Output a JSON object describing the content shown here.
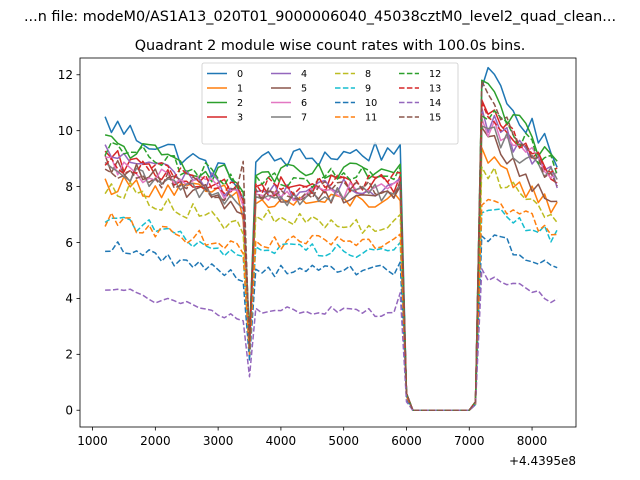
{
  "chart_data": {
    "type": "line",
    "suptitle": "...n file: modeM0/AS1A13_020T01_9000006040_45038cztM0_level2_quad_clean...",
    "title": "Quadrant 2 module wise count rates with 100.0s bins.",
    "xlabel": "",
    "ylabel": "",
    "x_offset_label": "+4.4395e8",
    "xlim": [
      800,
      8700
    ],
    "ylim": [
      -0.6,
      12.6
    ],
    "xticks": [
      1000,
      2000,
      3000,
      4000,
      5000,
      6000,
      7000,
      8000
    ],
    "xtick_labels": [
      "1000",
      "2000",
      "3000",
      "4000",
      "5000",
      "6000",
      "7000",
      "8000"
    ],
    "yticks": [
      0,
      2,
      4,
      6,
      8,
      10,
      12
    ],
    "ytick_labels": [
      "0",
      "2",
      "4",
      "6",
      "8",
      "10",
      "12"
    ],
    "grid": false,
    "legend": {
      "placement": "top-center",
      "ncol": 4
    },
    "x_knots": [
      1200,
      3300,
      3400,
      3500,
      3600,
      5800,
      5900,
      6000,
      6100,
      7000,
      7100,
      7200,
      8400
    ],
    "series": [
      {
        "name": "0",
        "color": "#1f77b4",
        "dash": "solid",
        "y_knots": [
          10.3,
          8.3,
          7.5,
          2.5,
          8.9,
          9.3,
          9.5,
          0.6,
          0.0,
          0.0,
          0.3,
          12.0,
          9.0
        ]
      },
      {
        "name": "1",
        "color": "#ff7f0e",
        "dash": "solid",
        "y_knots": [
          8.1,
          7.7,
          6.8,
          2.3,
          7.4,
          7.5,
          7.5,
          0.5,
          0.0,
          0.0,
          0.3,
          9.0,
          7.2
        ]
      },
      {
        "name": "2",
        "color": "#2ca02c",
        "dash": "solid",
        "y_knots": [
          9.6,
          8.3,
          7.8,
          2.6,
          8.4,
          8.5,
          8.8,
          0.6,
          0.0,
          0.0,
          0.3,
          11.4,
          8.8
        ]
      },
      {
        "name": "3",
        "color": "#d62728",
        "dash": "solid",
        "y_knots": [
          9.0,
          7.8,
          7.5,
          2.4,
          8.0,
          8.1,
          8.4,
          0.6,
          0.0,
          0.0,
          0.3,
          10.8,
          8.2
        ]
      },
      {
        "name": "4",
        "color": "#9467bd",
        "dash": "solid",
        "y_knots": [
          9.2,
          7.9,
          7.6,
          2.4,
          7.8,
          8.0,
          8.3,
          0.6,
          0.0,
          0.0,
          0.3,
          10.6,
          8.2
        ]
      },
      {
        "name": "5",
        "color": "#8c564b",
        "dash": "solid",
        "y_knots": [
          8.8,
          7.4,
          7.0,
          2.3,
          7.6,
          7.8,
          8.0,
          0.6,
          0.0,
          0.0,
          0.3,
          10.0,
          7.2
        ]
      },
      {
        "name": "6",
        "color": "#e377c2",
        "dash": "solid",
        "y_knots": [
          8.7,
          7.8,
          7.3,
          2.3,
          7.7,
          7.9,
          8.2,
          0.6,
          0.0,
          0.0,
          0.3,
          10.4,
          8.4
        ]
      },
      {
        "name": "7",
        "color": "#7f7f7f",
        "dash": "solid",
        "y_knots": [
          8.5,
          7.6,
          7.2,
          2.3,
          7.6,
          7.8,
          8.1,
          0.6,
          0.0,
          0.0,
          0.3,
          10.2,
          8.3
        ]
      },
      {
        "name": "8",
        "color": "#bcbd22",
        "dash": "dashed",
        "y_knots": [
          8.1,
          6.6,
          6.3,
          2.1,
          6.9,
          6.5,
          7.0,
          0.5,
          0.0,
          0.0,
          0.3,
          8.8,
          6.9
        ]
      },
      {
        "name": "9",
        "color": "#17becf",
        "dash": "dashed",
        "y_knots": [
          7.0,
          5.6,
          5.5,
          2.0,
          5.8,
          5.7,
          6.0,
          0.5,
          0.0,
          0.0,
          0.2,
          7.2,
          6.2
        ]
      },
      {
        "name": "10",
        "color": "#1f77b4",
        "dash": "dashed",
        "y_knots": [
          5.9,
          4.9,
          4.6,
          1.8,
          5.0,
          5.0,
          5.3,
          0.4,
          0.0,
          0.0,
          0.2,
          6.4,
          5.0
        ]
      },
      {
        "name": "11",
        "color": "#ff7f0e",
        "dash": "dashed",
        "y_knots": [
          6.8,
          5.9,
          5.6,
          2.0,
          6.0,
          6.0,
          6.3,
          0.5,
          0.0,
          0.0,
          0.2,
          7.6,
          6.3
        ]
      },
      {
        "name": "12",
        "color": "#2ca02c",
        "dash": "dashed",
        "y_knots": [
          9.4,
          8.2,
          7.8,
          2.5,
          8.3,
          8.4,
          8.7,
          0.6,
          0.0,
          0.0,
          0.3,
          11.0,
          8.6
        ]
      },
      {
        "name": "13",
        "color": "#d62728",
        "dash": "dashed",
        "y_knots": [
          9.0,
          7.9,
          7.5,
          2.4,
          8.0,
          8.2,
          8.5,
          0.6,
          0.0,
          0.0,
          0.3,
          10.6,
          8.3
        ]
      },
      {
        "name": "14",
        "color": "#9467bd",
        "dash": "dashed",
        "y_knots": [
          4.4,
          3.3,
          3.2,
          1.2,
          3.6,
          3.5,
          4.2,
          0.3,
          0.0,
          0.0,
          0.2,
          4.9,
          3.9
        ]
      },
      {
        "name": "15",
        "color": "#8c564b",
        "dash": "dashed",
        "y_knots": [
          8.8,
          7.6,
          8.9,
          2.2,
          7.8,
          7.9,
          8.2,
          0.6,
          0.0,
          0.0,
          0.3,
          11.5,
          8.0
        ]
      }
    ]
  }
}
